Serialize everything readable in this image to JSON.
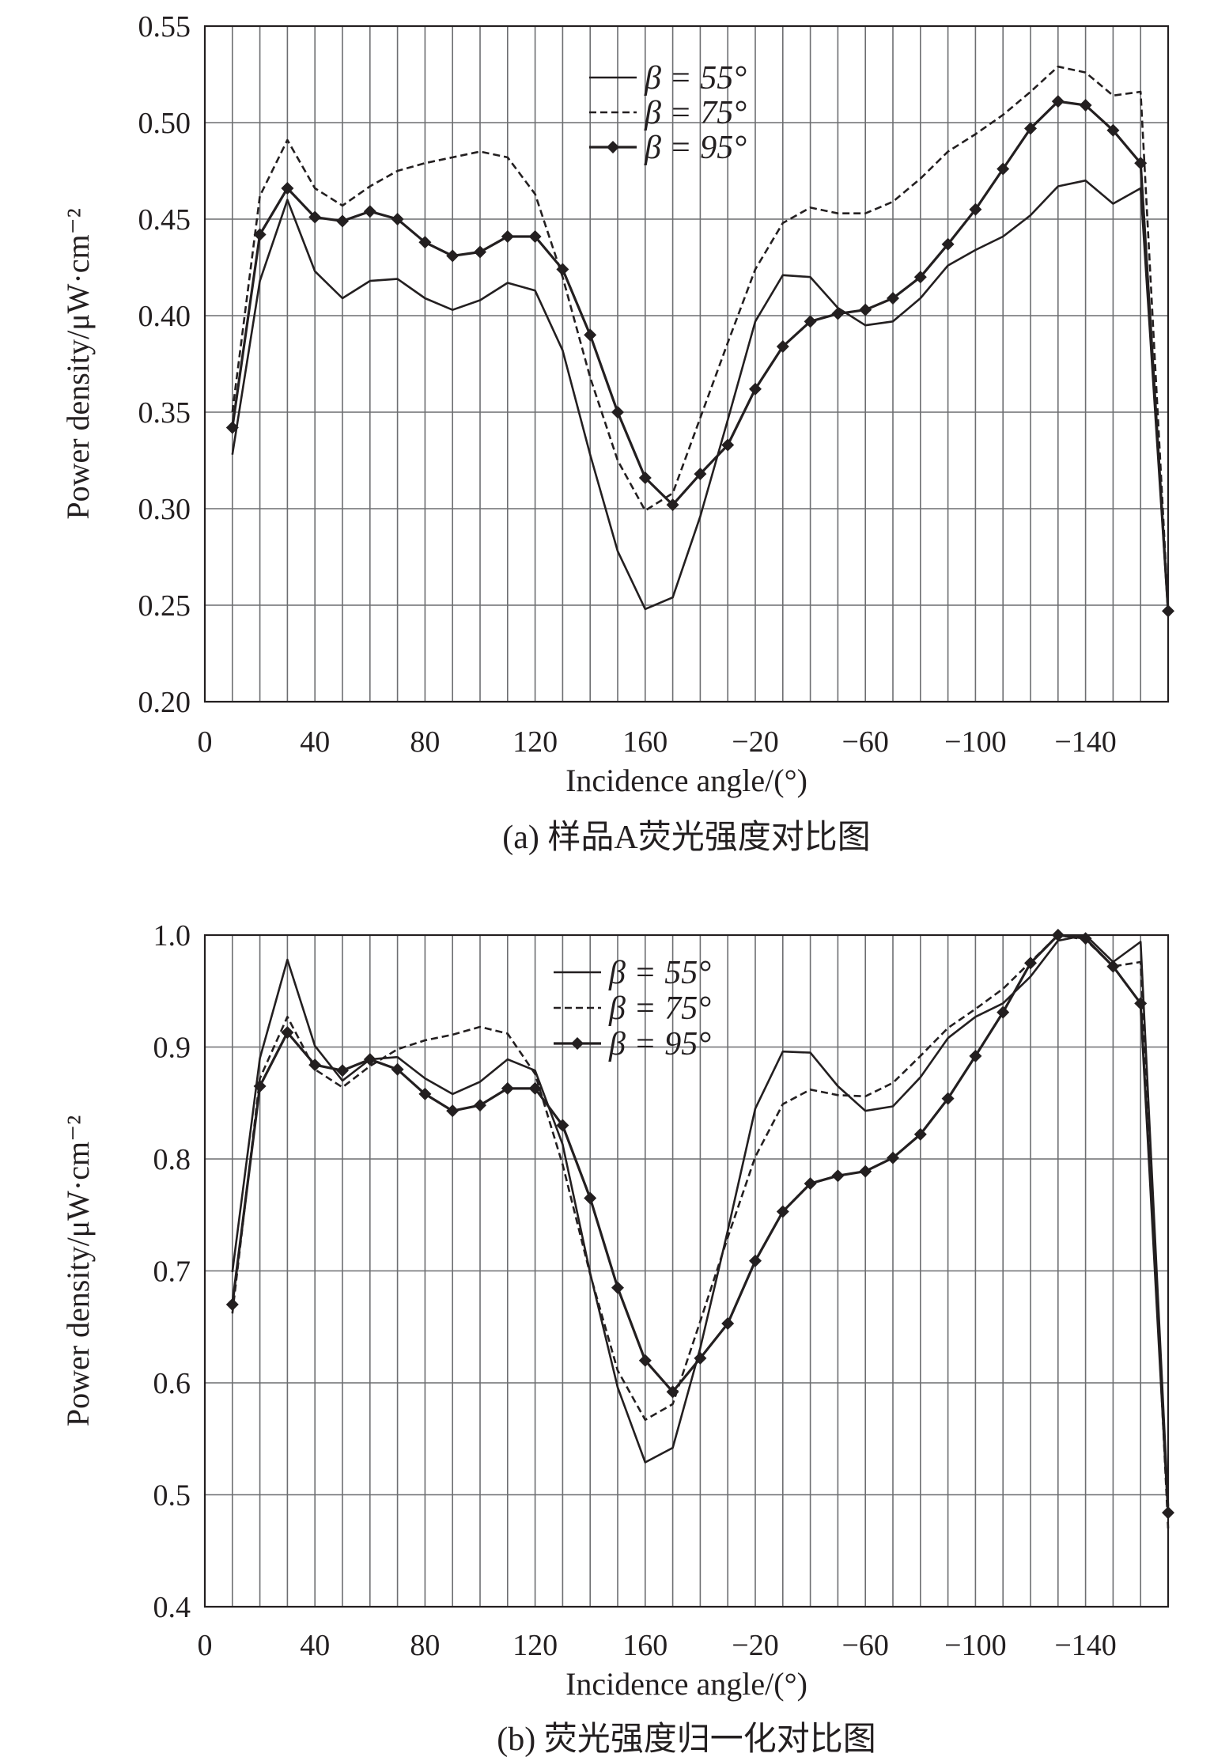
{
  "chart_data": [
    {
      "type": "line",
      "caption": "(a) 样品A荧光强度对比图",
      "xlabel": "Incidence angle/(°)",
      "ylabel": "Power density/μW·cm⁻²",
      "ylim": [
        0.2,
        0.55
      ],
      "yticks": [
        "0.20",
        "0.25",
        "0.30",
        "0.35",
        "0.40",
        "0.45",
        "0.50",
        "0.55"
      ],
      "xticks": [
        "0",
        "40",
        "80",
        "120",
        "160",
        "−20",
        "−60",
        "−100",
        "−140"
      ],
      "grid": true,
      "legend_position": "top-center",
      "x": [
        10,
        20,
        30,
        40,
        50,
        60,
        70,
        80,
        90,
        100,
        110,
        120,
        130,
        140,
        150,
        160,
        170,
        180,
        -10,
        -20,
        -30,
        -40,
        -50,
        -60,
        -70,
        -80,
        -90,
        -100,
        -110,
        -120,
        -130,
        -140,
        -150,
        -160,
        -170
      ],
      "series": [
        {
          "name": "β = 55°",
          "style": "solid",
          "values": [
            0.328,
            0.418,
            0.46,
            0.423,
            0.409,
            0.418,
            0.419,
            0.409,
            0.403,
            0.408,
            0.417,
            0.413,
            0.382,
            0.328,
            0.278,
            0.248,
            0.254,
            0.296,
            0.346,
            0.397,
            0.421,
            0.42,
            0.404,
            0.395,
            0.397,
            0.409,
            0.426,
            0.434,
            0.441,
            0.452,
            0.467,
            0.47,
            0.458,
            0.466,
            0.246
          ]
        },
        {
          "name": "β = 75°",
          "style": "dashed",
          "values": [
            0.35,
            0.462,
            0.491,
            0.466,
            0.457,
            0.467,
            0.475,
            0.479,
            0.482,
            0.485,
            0.482,
            0.463,
            0.42,
            0.368,
            0.325,
            0.299,
            0.308,
            0.347,
            0.386,
            0.424,
            0.448,
            0.456,
            0.453,
            0.453,
            0.459,
            0.471,
            0.485,
            0.494,
            0.504,
            0.516,
            0.529,
            0.526,
            0.514,
            0.516,
            0.248
          ]
        },
        {
          "name": "β = 95°",
          "style": "solid-markers",
          "values": [
            0.342,
            0.442,
            0.466,
            0.451,
            0.449,
            0.454,
            0.45,
            0.438,
            0.431,
            0.433,
            0.441,
            0.441,
            0.424,
            0.39,
            0.35,
            0.316,
            0.302,
            0.318,
            0.333,
            0.362,
            0.384,
            0.397,
            0.401,
            0.403,
            0.409,
            0.42,
            0.437,
            0.455,
            0.476,
            0.497,
            0.511,
            0.509,
            0.496,
            0.479,
            0.247
          ]
        }
      ]
    },
    {
      "type": "line",
      "caption": "(b) 荧光强度归一化对比图",
      "xlabel": "Incidence angle/(°)",
      "ylabel": "Power density/μW·cm⁻²",
      "ylim": [
        0.4,
        1.0
      ],
      "yticks": [
        "0.4",
        "0.5",
        "0.6",
        "0.7",
        "0.8",
        "0.9",
        "1.0"
      ],
      "xticks": [
        "0",
        "40",
        "80",
        "120",
        "160",
        "−20",
        "−60",
        "−100",
        "−140"
      ],
      "grid": true,
      "legend_position": "top-center",
      "x": [
        10,
        20,
        30,
        40,
        50,
        60,
        70,
        80,
        90,
        100,
        110,
        120,
        130,
        140,
        150,
        160,
        170,
        180,
        -10,
        -20,
        -30,
        -40,
        -50,
        -60,
        -70,
        -80,
        -90,
        -100,
        -110,
        -120,
        -130,
        -140,
        -150,
        -160,
        -170
      ],
      "series": [
        {
          "name": "β = 55°",
          "style": "solid",
          "values": [
            0.699,
            0.89,
            0.978,
            0.901,
            0.87,
            0.889,
            0.891,
            0.872,
            0.858,
            0.869,
            0.889,
            0.879,
            0.813,
            0.698,
            0.596,
            0.529,
            0.542,
            0.631,
            0.736,
            0.845,
            0.896,
            0.895,
            0.865,
            0.843,
            0.847,
            0.873,
            0.908,
            0.927,
            0.939,
            0.963,
            0.995,
            1.0,
            0.976,
            0.994,
            0.49
          ]
        },
        {
          "name": "β = 75°",
          "style": "dashed",
          "values": [
            0.662,
            0.872,
            0.927,
            0.88,
            0.864,
            0.883,
            0.898,
            0.906,
            0.911,
            0.918,
            0.912,
            0.876,
            0.795,
            0.697,
            0.611,
            0.567,
            0.581,
            0.655,
            0.73,
            0.802,
            0.849,
            0.862,
            0.857,
            0.856,
            0.868,
            0.892,
            0.917,
            0.934,
            0.952,
            0.976,
            1.0,
            0.996,
            0.972,
            0.976,
            0.47
          ]
        },
        {
          "name": "β = 95°",
          "style": "solid-markers",
          "values": [
            0.67,
            0.865,
            0.913,
            0.884,
            0.879,
            0.889,
            0.88,
            0.858,
            0.843,
            0.848,
            0.863,
            0.863,
            0.83,
            0.765,
            0.685,
            0.62,
            0.592,
            0.622,
            0.653,
            0.709,
            0.753,
            0.778,
            0.785,
            0.789,
            0.801,
            0.822,
            0.854,
            0.892,
            0.931,
            0.975,
            1.0,
            0.997,
            0.972,
            0.939,
            0.484
          ]
        }
      ]
    }
  ]
}
